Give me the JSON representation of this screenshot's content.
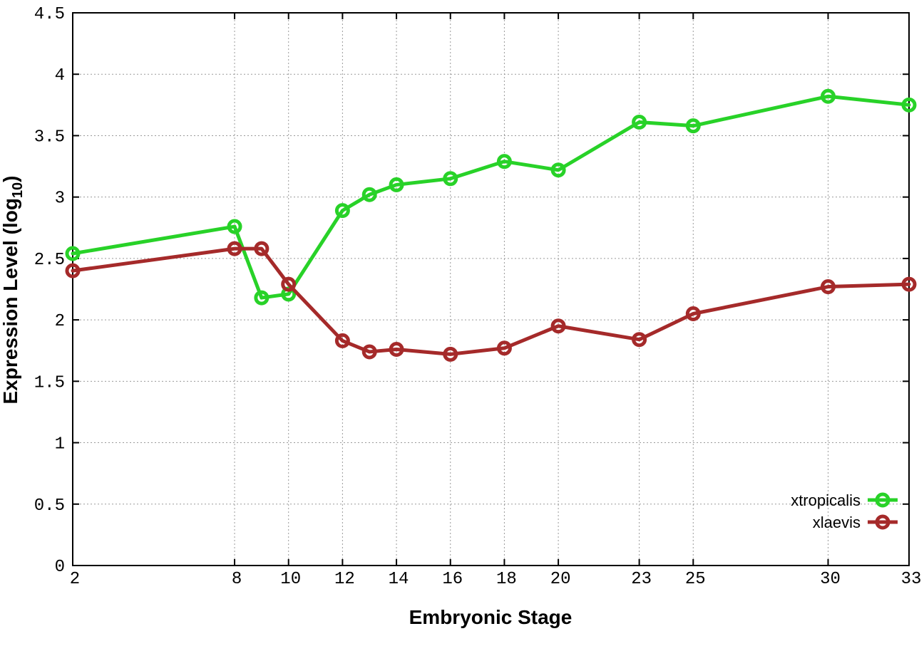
{
  "figure": {
    "background": "#ffffff"
  },
  "chart_data": {
    "type": "line",
    "title": "",
    "xlabel": "Embryonic Stage",
    "ylabel_prefix": "Expression Level (log",
    "ylabel_sub": "10",
    "ylabel_suffix": ")",
    "x": [
      2,
      8,
      9,
      10,
      12,
      13,
      14,
      16,
      18,
      20,
      23,
      25,
      30,
      33
    ],
    "series": [
      {
        "name": "xtropicalis",
        "color": "#28d228",
        "values": [
          2.54,
          2.76,
          2.18,
          2.21,
          2.89,
          3.02,
          3.1,
          3.15,
          3.29,
          3.22,
          3.61,
          3.58,
          3.82,
          3.75
        ]
      },
      {
        "name": "xlaevis",
        "color": "#a52a2a",
        "values": [
          2.4,
          2.58,
          2.58,
          2.29,
          1.83,
          1.74,
          1.76,
          1.72,
          1.77,
          1.95,
          1.84,
          2.05,
          2.27,
          2.29
        ]
      }
    ],
    "xticks": [
      2,
      8,
      10,
      12,
      14,
      16,
      18,
      20,
      23,
      25,
      30,
      33
    ],
    "xtick_labels": [
      "2",
      "8",
      "10",
      "12",
      "14",
      "16",
      "18",
      "20",
      "23",
      "25",
      "30",
      "33"
    ],
    "yticks": [
      0,
      0.5,
      1,
      1.5,
      2,
      2.5,
      3,
      3.5,
      4,
      4.5
    ],
    "ytick_labels": [
      "0",
      "0.5",
      "1",
      "1.5",
      "2",
      "2.5",
      "3",
      "3.5",
      "4",
      "4.5"
    ],
    "xlim": [
      2,
      33
    ],
    "ylim": [
      0,
      4.5
    ],
    "grid": true,
    "legend_position": "bottom-right",
    "axis_color": "#000000",
    "grid_color": "#9a9a9a"
  }
}
